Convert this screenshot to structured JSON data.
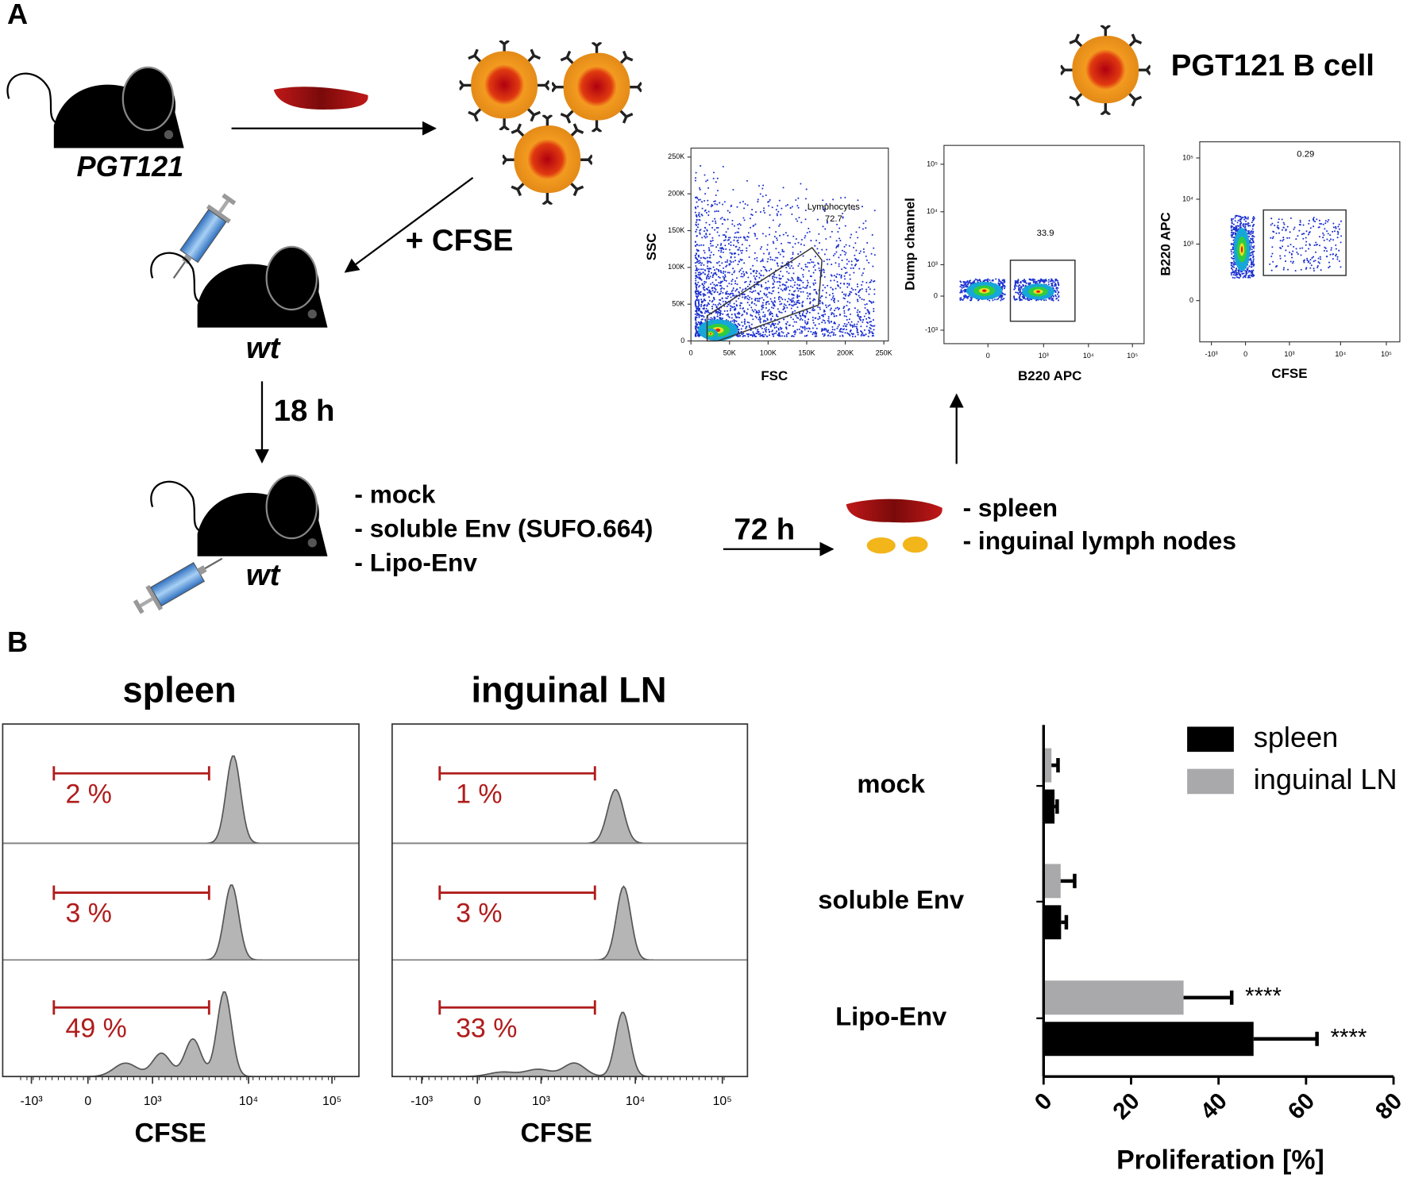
{
  "panels": {
    "a": "A",
    "b": "B"
  },
  "diagram": {
    "mouse1": "PGT121",
    "arrow_label": "+ CFSE",
    "mouse2": "wt",
    "time1": "18 h",
    "mouse3": "wt",
    "treatments": [
      "- mock",
      "- soluble Env (SUFO.664)",
      "- Lipo-Env"
    ],
    "time2": "72 h",
    "organs": [
      "- spleen",
      "- inguinal lymph nodes"
    ],
    "cell_legend": "PGT121 B cell"
  },
  "flow": [
    {
      "x_label": "FSC",
      "y_label": "SSC",
      "xticks": [
        "0",
        "50K",
        "100K",
        "150K",
        "200K",
        "250K"
      ],
      "yticks": [
        "0",
        "50K",
        "100K",
        "150K",
        "200K",
        "250K"
      ],
      "gate": [
        "Lymphocytes",
        "72.7"
      ]
    },
    {
      "x_label": "B220 APC",
      "y_label": "Dump channel",
      "xticks": [
        "0",
        "10³",
        "10⁴",
        "10⁵"
      ],
      "yticks": [
        "-10³",
        "0",
        "10³",
        "10⁴",
        "10⁵"
      ],
      "gate": [
        "33.9"
      ]
    },
    {
      "x_label": "CFSE",
      "y_label": "B220 APC",
      "xticks": [
        "-10³",
        "0",
        "10³",
        "10⁴",
        "10⁵"
      ],
      "yticks": [
        "0",
        "10³",
        "10⁴",
        "10⁵"
      ],
      "gate": [
        "0.29"
      ]
    }
  ],
  "histograms": {
    "x_label": "CFSE",
    "xticks": [
      "-10³",
      "0",
      "10³",
      "10⁴",
      "10⁵"
    ],
    "panels": [
      {
        "title": "spleen",
        "percents": [
          "2 %",
          "3 %",
          "49 %"
        ]
      },
      {
        "title": "inguinal LN",
        "percents": [
          "1 %",
          "3 %",
          "33 %"
        ]
      }
    ]
  },
  "chart_data": {
    "type": "bar",
    "orientation": "horizontal",
    "categories": [
      "mock",
      "soluble Env",
      "Lipo-Env"
    ],
    "series": [
      {
        "name": "spleen",
        "color": "#000000",
        "values": [
          2.5,
          4,
          48
        ],
        "errors": [
          0.6,
          1.2,
          14.5
        ],
        "significance": [
          null,
          null,
          "****"
        ]
      },
      {
        "name": "inguinal LN",
        "color": "#a9a9ab",
        "values": [
          1.8,
          3.9,
          32
        ],
        "errors": [
          1.5,
          3.2,
          11
        ],
        "significance": [
          null,
          null,
          "****"
        ]
      }
    ],
    "xlim": [
      0,
      80
    ],
    "xticks": [
      0,
      20,
      40,
      60,
      80
    ],
    "x_label": "Proliferation [%]",
    "legend": "top-right"
  }
}
